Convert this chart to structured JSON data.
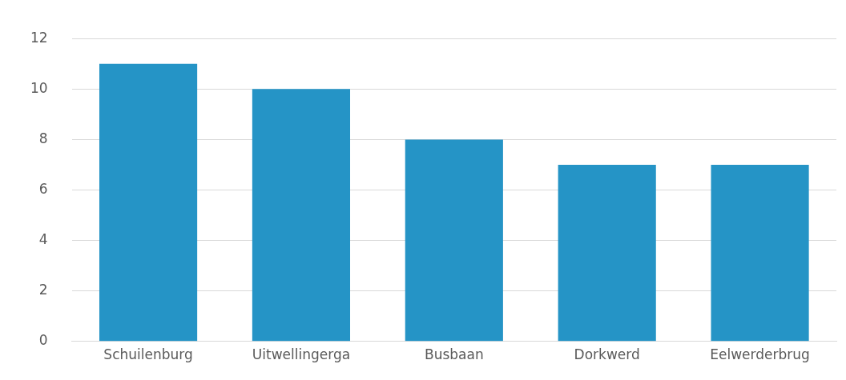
{
  "chart_data": {
    "type": "bar",
    "categories": [
      "Schuilenburg",
      "Uitwellingerga",
      "Busbaan",
      "Dorkwerd",
      "Eelwerderbrug"
    ],
    "values": [
      11,
      10,
      8,
      7,
      7
    ],
    "color": "#2594c6",
    "ylim": [
      0,
      12
    ],
    "yticks": [
      0,
      2,
      4,
      6,
      8,
      10,
      12
    ],
    "grid": "y"
  }
}
